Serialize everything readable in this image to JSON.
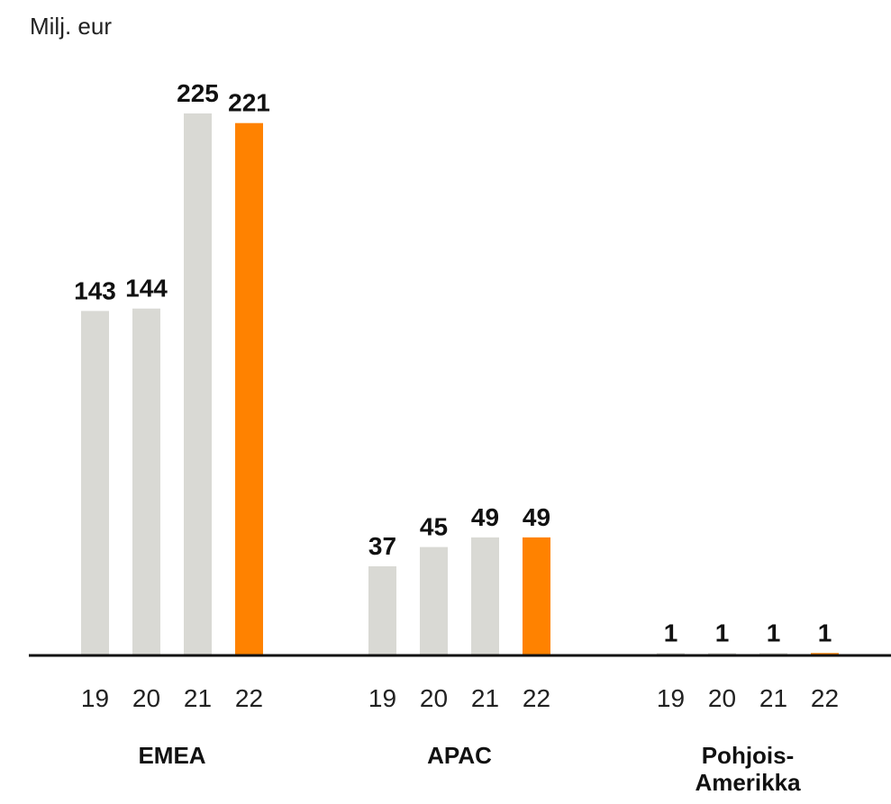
{
  "chart_data": {
    "type": "bar",
    "ylabel": "Milj. eur",
    "ylim": [
      0,
      230
    ],
    "grid": false,
    "legend": "none",
    "groups": [
      {
        "label_lines": [
          "EMEA"
        ],
        "categories": [
          "19",
          "20",
          "21",
          "22"
        ],
        "values": [
          143,
          144,
          225,
          221
        ],
        "value_labels": [
          "143",
          "144",
          "225",
          "221"
        ]
      },
      {
        "label_lines": [
          "APAC"
        ],
        "categories": [
          "19",
          "20",
          "21",
          "22"
        ],
        "values": [
          37,
          45,
          49,
          49
        ],
        "value_labels": [
          "37",
          "45",
          "49",
          "49"
        ]
      },
      {
        "label_lines": [
          "Pohjois-",
          "Amerikka"
        ],
        "categories": [
          "19",
          "20",
          "21",
          "22"
        ],
        "values": [
          1,
          1,
          1,
          1
        ],
        "value_labels": [
          "1",
          "1",
          "1",
          "1"
        ]
      }
    ],
    "colors": {
      "past_year": "#d9d9d4",
      "current_year": "#ff8200",
      "axis": "#111111"
    }
  }
}
